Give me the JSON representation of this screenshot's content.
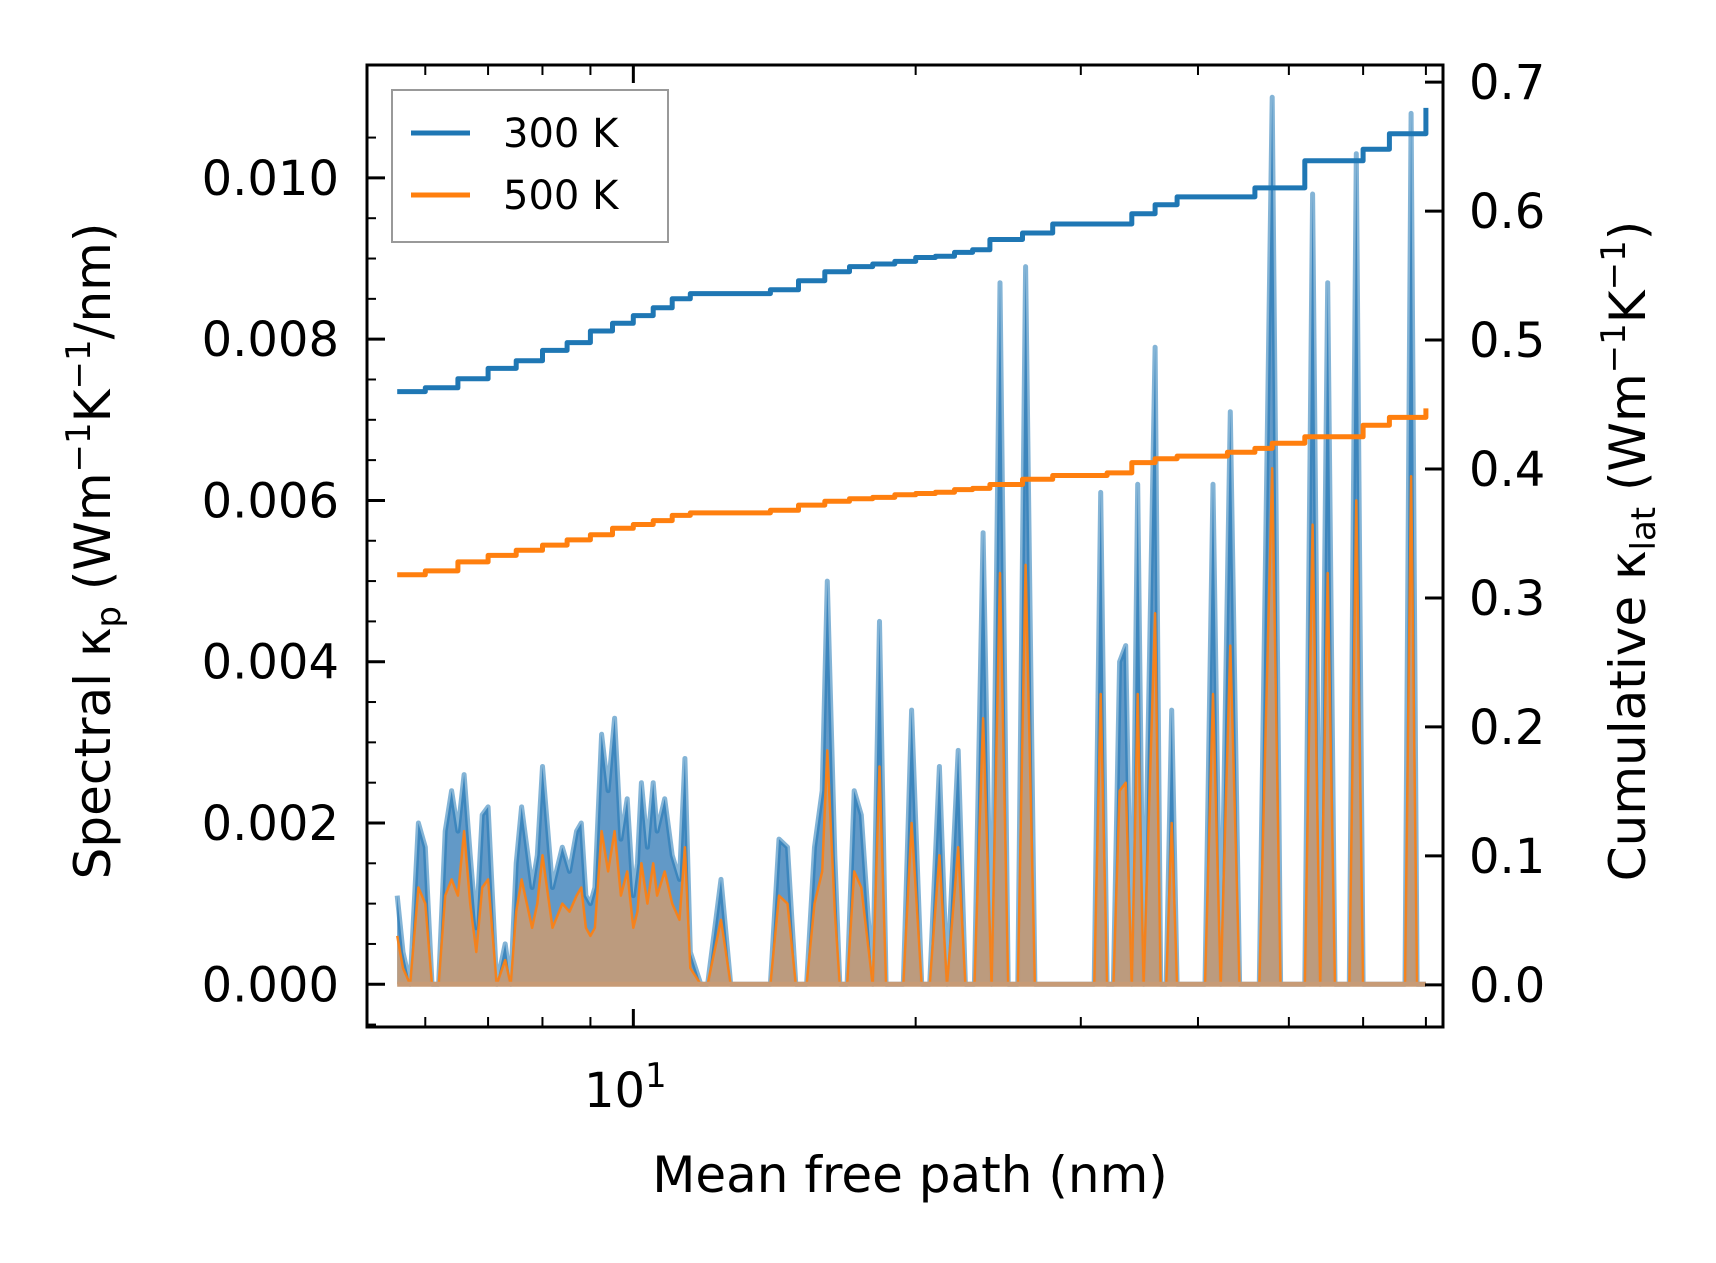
{
  "chart_data": {
    "type": "line",
    "title": "",
    "xlabel": "Mean free path (nm)",
    "x_scale": "log",
    "x_tick_labels": [
      {
        "base": "10",
        "exp": "1",
        "value": 10
      }
    ],
    "xlim": [
      5.2,
      73
    ],
    "y_left": {
      "label_parts": {
        "pre": "Spectral κ",
        "sub": "p",
        "mid": " (Wm",
        "sup1": "−1",
        "k": "K",
        "sup2": "−1",
        "post": "/nm)"
      },
      "ylim": [
        -0.00053,
        0.0114
      ],
      "ticks": [
        0.0,
        0.002,
        0.004,
        0.006,
        0.008,
        0.01
      ],
      "tick_labels": [
        "0.000",
        "0.002",
        "0.004",
        "0.006",
        "0.008",
        "0.010"
      ]
    },
    "y_right": {
      "label_parts": {
        "pre": "Cumulative κ",
        "sub": "lat",
        "mid": " (Wm",
        "sup1": "−1",
        "k": "K",
        "sup2": "−1",
        "post": ")"
      },
      "ylim": [
        -0.0327,
        0.7133
      ],
      "ticks": [
        0.0,
        0.1,
        0.2,
        0.3,
        0.4,
        0.5,
        0.6,
        0.7
      ],
      "tick_labels": [
        "0.0",
        "0.1",
        "0.2",
        "0.3",
        "0.4",
        "0.5",
        "0.6",
        "0.7"
      ]
    },
    "legend": {
      "position": "top-left",
      "entries": [
        "300 K",
        "500 K"
      ]
    },
    "colors": {
      "300 K": "#1f77b4",
      "500 K": "#ff7f0e",
      "fill_300": "#5a93c4",
      "fill_500": "#c79b76"
    },
    "series": [
      {
        "name": "300 K",
        "axis": "right",
        "kind": "cumulative",
        "x": [
          5.6,
          5.8,
          6.0,
          6.5,
          7.0,
          7.5,
          8.0,
          8.5,
          9.0,
          9.5,
          10.0,
          10.5,
          11.0,
          11.5,
          12.0,
          13.0,
          14.0,
          15.0,
          16.0,
          17.0,
          18.0,
          19.0,
          20.0,
          21.0,
          22.0,
          23.0,
          24.0,
          26.0,
          28.0,
          30.0,
          32.0,
          34.0,
          36.0,
          38.0,
          40.0,
          43.0,
          46.0,
          48.0,
          52.0,
          56.0,
          60.0,
          64.0,
          70.0
        ],
        "values": [
          0.46,
          0.46,
          0.463,
          0.47,
          0.478,
          0.484,
          0.492,
          0.498,
          0.507,
          0.513,
          0.519,
          0.525,
          0.532,
          0.536,
          0.536,
          0.536,
          0.539,
          0.546,
          0.553,
          0.557,
          0.559,
          0.561,
          0.564,
          0.565,
          0.568,
          0.57,
          0.578,
          0.583,
          0.59,
          0.59,
          0.59,
          0.598,
          0.605,
          0.611,
          0.611,
          0.611,
          0.618,
          0.618,
          0.639,
          0.639,
          0.648,
          0.66,
          0.68
        ]
      },
      {
        "name": "500 K",
        "axis": "right",
        "kind": "cumulative",
        "x": [
          5.6,
          5.8,
          6.0,
          6.5,
          7.0,
          7.5,
          8.0,
          8.5,
          9.0,
          9.5,
          10.0,
          10.5,
          11.0,
          11.5,
          12.0,
          13.0,
          14.0,
          15.0,
          16.0,
          17.0,
          18.0,
          19.0,
          20.0,
          21.0,
          22.0,
          23.0,
          24.0,
          26.0,
          28.0,
          30.0,
          32.0,
          34.0,
          36.0,
          38.0,
          40.0,
          43.0,
          46.0,
          48.0,
          52.0,
          56.0,
          60.0,
          64.0,
          70.0
        ],
        "values": [
          0.318,
          0.318,
          0.321,
          0.328,
          0.333,
          0.337,
          0.341,
          0.345,
          0.349,
          0.354,
          0.357,
          0.36,
          0.364,
          0.366,
          0.366,
          0.366,
          0.368,
          0.372,
          0.375,
          0.377,
          0.378,
          0.38,
          0.381,
          0.382,
          0.384,
          0.385,
          0.388,
          0.392,
          0.395,
          0.395,
          0.397,
          0.405,
          0.408,
          0.41,
          0.41,
          0.413,
          0.416,
          0.42,
          0.425,
          0.425,
          0.434,
          0.44,
          0.447
        ]
      },
      {
        "name": "300 K spectral",
        "axis": "left",
        "kind": "spectral",
        "x": [
          5.6,
          5.68,
          5.78,
          5.9,
          6.0,
          6.1,
          6.2,
          6.3,
          6.4,
          6.5,
          6.6,
          6.7,
          6.8,
          6.9,
          7.0,
          7.15,
          7.3,
          7.4,
          7.5,
          7.6,
          7.8,
          7.9,
          8.0,
          8.2,
          8.4,
          8.55,
          8.7,
          8.8,
          8.9,
          9.0,
          9.1,
          9.25,
          9.4,
          9.55,
          9.7,
          9.85,
          10.0,
          10.1,
          10.2,
          10.35,
          10.5,
          10.6,
          10.8,
          11.0,
          11.2,
          11.35,
          11.5,
          11.8,
          12.0,
          12.4,
          12.7,
          13.0,
          13.5,
          14.0,
          14.3,
          14.6,
          14.9,
          15.1,
          15.3,
          15.6,
          15.9,
          16.1,
          16.4,
          16.6,
          16.9,
          17.2,
          17.5,
          18.0,
          18.3,
          18.6,
          19.0,
          19.4,
          19.8,
          20.3,
          20.7,
          21.2,
          21.6,
          22.2,
          22.6,
          23.1,
          23.6,
          24.1,
          24.6,
          25.1,
          25.7,
          26.2,
          26.8,
          27.5,
          28.2,
          29.0,
          31.0,
          31.5,
          32.0,
          32.5,
          33.0,
          33.5,
          34.0,
          34.5,
          35.0,
          36.0,
          36.5,
          37.0,
          37.5,
          38.0,
          40.0,
          40.7,
          41.5,
          42.3,
          43.3,
          44.3,
          45.0,
          46.5,
          48.0,
          49.0,
          50.5,
          52.0,
          53.0,
          54.0,
          55.0,
          56.0,
          57.0,
          58.0,
          59.0,
          60.0,
          61.0,
          62.0,
          63.0,
          64.0,
          66.5,
          67.5,
          68.5,
          70.0
        ],
        "values": [
          0.0011,
          0.0004,
          0.0,
          0.002,
          0.0017,
          0.0,
          0.0,
          0.0019,
          0.0024,
          0.0019,
          0.0026,
          0.0016,
          0.0007,
          0.0021,
          0.0022,
          0.0,
          0.0005,
          0.0,
          0.0015,
          0.0022,
          0.0012,
          0.0016,
          0.0027,
          0.0012,
          0.0017,
          0.0014,
          0.0019,
          0.002,
          0.0011,
          0.001,
          0.0012,
          0.0031,
          0.0024,
          0.0033,
          0.0018,
          0.0023,
          0.0011,
          0.0015,
          0.0025,
          0.0017,
          0.0025,
          0.0019,
          0.0023,
          0.0016,
          0.0013,
          0.0028,
          0.0004,
          0.0,
          0.0,
          0.0013,
          0.0,
          0.0,
          0.0,
          0.0,
          0.0018,
          0.0017,
          0.0,
          0.0,
          0.0,
          0.0017,
          0.0024,
          0.005,
          0.0016,
          0.0,
          0.0,
          0.0024,
          0.0021,
          0.0,
          0.0045,
          0.0,
          0.0,
          0.0,
          0.0034,
          0.0,
          0.0,
          0.0027,
          0.0,
          0.0029,
          0.0,
          0.0,
          0.0056,
          0.0,
          0.0087,
          0.0,
          0.0,
          0.0089,
          0.0,
          0.0,
          0.0,
          0.0,
          0.0,
          0.0061,
          0.0,
          0.0,
          0.004,
          0.0042,
          0.0,
          0.0062,
          0.0,
          0.0079,
          0.0,
          0.0,
          0.0034,
          0.0,
          0.0,
          0.0,
          0.0062,
          0.0,
          0.0071,
          0.0,
          0.0,
          0.0,
          0.011,
          0.0,
          0.0,
          0.0,
          0.0098,
          0.0,
          0.0087,
          0.0,
          0.0,
          0.0,
          0.0103,
          0.0,
          0.0,
          0.0,
          0.0,
          0.0,
          0.0,
          0.0108,
          0.0,
          0.0
        ]
      },
      {
        "name": "500 K spectral",
        "axis": "left",
        "kind": "spectral",
        "x": [
          5.6,
          5.68,
          5.78,
          5.9,
          6.0,
          6.1,
          6.2,
          6.3,
          6.4,
          6.5,
          6.6,
          6.7,
          6.8,
          6.9,
          7.0,
          7.15,
          7.3,
          7.4,
          7.5,
          7.6,
          7.8,
          7.9,
          8.0,
          8.2,
          8.4,
          8.55,
          8.7,
          8.8,
          8.9,
          9.0,
          9.1,
          9.25,
          9.4,
          9.55,
          9.7,
          9.85,
          10.0,
          10.1,
          10.2,
          10.35,
          10.5,
          10.6,
          10.8,
          11.0,
          11.2,
          11.35,
          11.5,
          11.8,
          12.0,
          12.4,
          12.7,
          13.0,
          13.5,
          14.0,
          14.3,
          14.6,
          14.9,
          15.1,
          15.3,
          15.6,
          15.9,
          16.1,
          16.4,
          16.6,
          16.9,
          17.2,
          17.5,
          18.0,
          18.3,
          18.6,
          19.0,
          19.4,
          19.8,
          20.3,
          20.7,
          21.2,
          21.6,
          22.2,
          22.6,
          23.1,
          23.6,
          24.1,
          24.6,
          25.1,
          25.7,
          26.2,
          26.8,
          27.5,
          28.2,
          29.0,
          31.0,
          31.5,
          32.0,
          32.5,
          33.0,
          33.5,
          34.0,
          34.5,
          35.0,
          36.0,
          36.5,
          37.0,
          37.5,
          38.0,
          40.0,
          40.7,
          41.5,
          42.3,
          43.3,
          44.3,
          45.0,
          46.5,
          48.0,
          49.0,
          50.5,
          52.0,
          53.0,
          54.0,
          55.0,
          56.0,
          57.0,
          58.0,
          59.0,
          60.0,
          61.0,
          62.0,
          63.0,
          64.0,
          66.5,
          67.5,
          68.5,
          70.0
        ],
        "values": [
          0.0006,
          0.0002,
          0.0,
          0.0012,
          0.001,
          0.0,
          0.0,
          0.0011,
          0.0013,
          0.0011,
          0.0019,
          0.001,
          0.0004,
          0.0012,
          0.0013,
          0.0,
          0.0003,
          0.0,
          0.0009,
          0.0013,
          0.0007,
          0.001,
          0.0016,
          0.0007,
          0.001,
          0.0009,
          0.0011,
          0.0012,
          0.0007,
          0.0006,
          0.0007,
          0.0019,
          0.0014,
          0.0019,
          0.0011,
          0.0014,
          0.0007,
          0.0009,
          0.0015,
          0.001,
          0.0015,
          0.0011,
          0.0014,
          0.001,
          0.0008,
          0.0017,
          0.0002,
          0.0,
          0.0,
          0.0008,
          0.0,
          0.0,
          0.0,
          0.0,
          0.0011,
          0.001,
          0.0,
          0.0,
          0.0,
          0.001,
          0.0014,
          0.0029,
          0.0009,
          0.0,
          0.0,
          0.0014,
          0.0012,
          0.0,
          0.0027,
          0.0,
          0.0,
          0.0,
          0.002,
          0.0,
          0.0,
          0.0016,
          0.0,
          0.0017,
          0.0,
          0.0,
          0.0033,
          0.0,
          0.0051,
          0.0,
          0.0,
          0.0052,
          0.0,
          0.0,
          0.0,
          0.0,
          0.0,
          0.0036,
          0.0,
          0.0,
          0.0024,
          0.0025,
          0.0,
          0.0036,
          0.0,
          0.0046,
          0.0,
          0.0,
          0.002,
          0.0,
          0.0,
          0.0,
          0.0036,
          0.0,
          0.0042,
          0.0,
          0.0,
          0.0,
          0.0064,
          0.0,
          0.0,
          0.0,
          0.0057,
          0.0,
          0.0051,
          0.0,
          0.0,
          0.0,
          0.006,
          0.0,
          0.0,
          0.0,
          0.0,
          0.0,
          0.0,
          0.0063,
          0.0,
          0.0
        ]
      }
    ]
  }
}
